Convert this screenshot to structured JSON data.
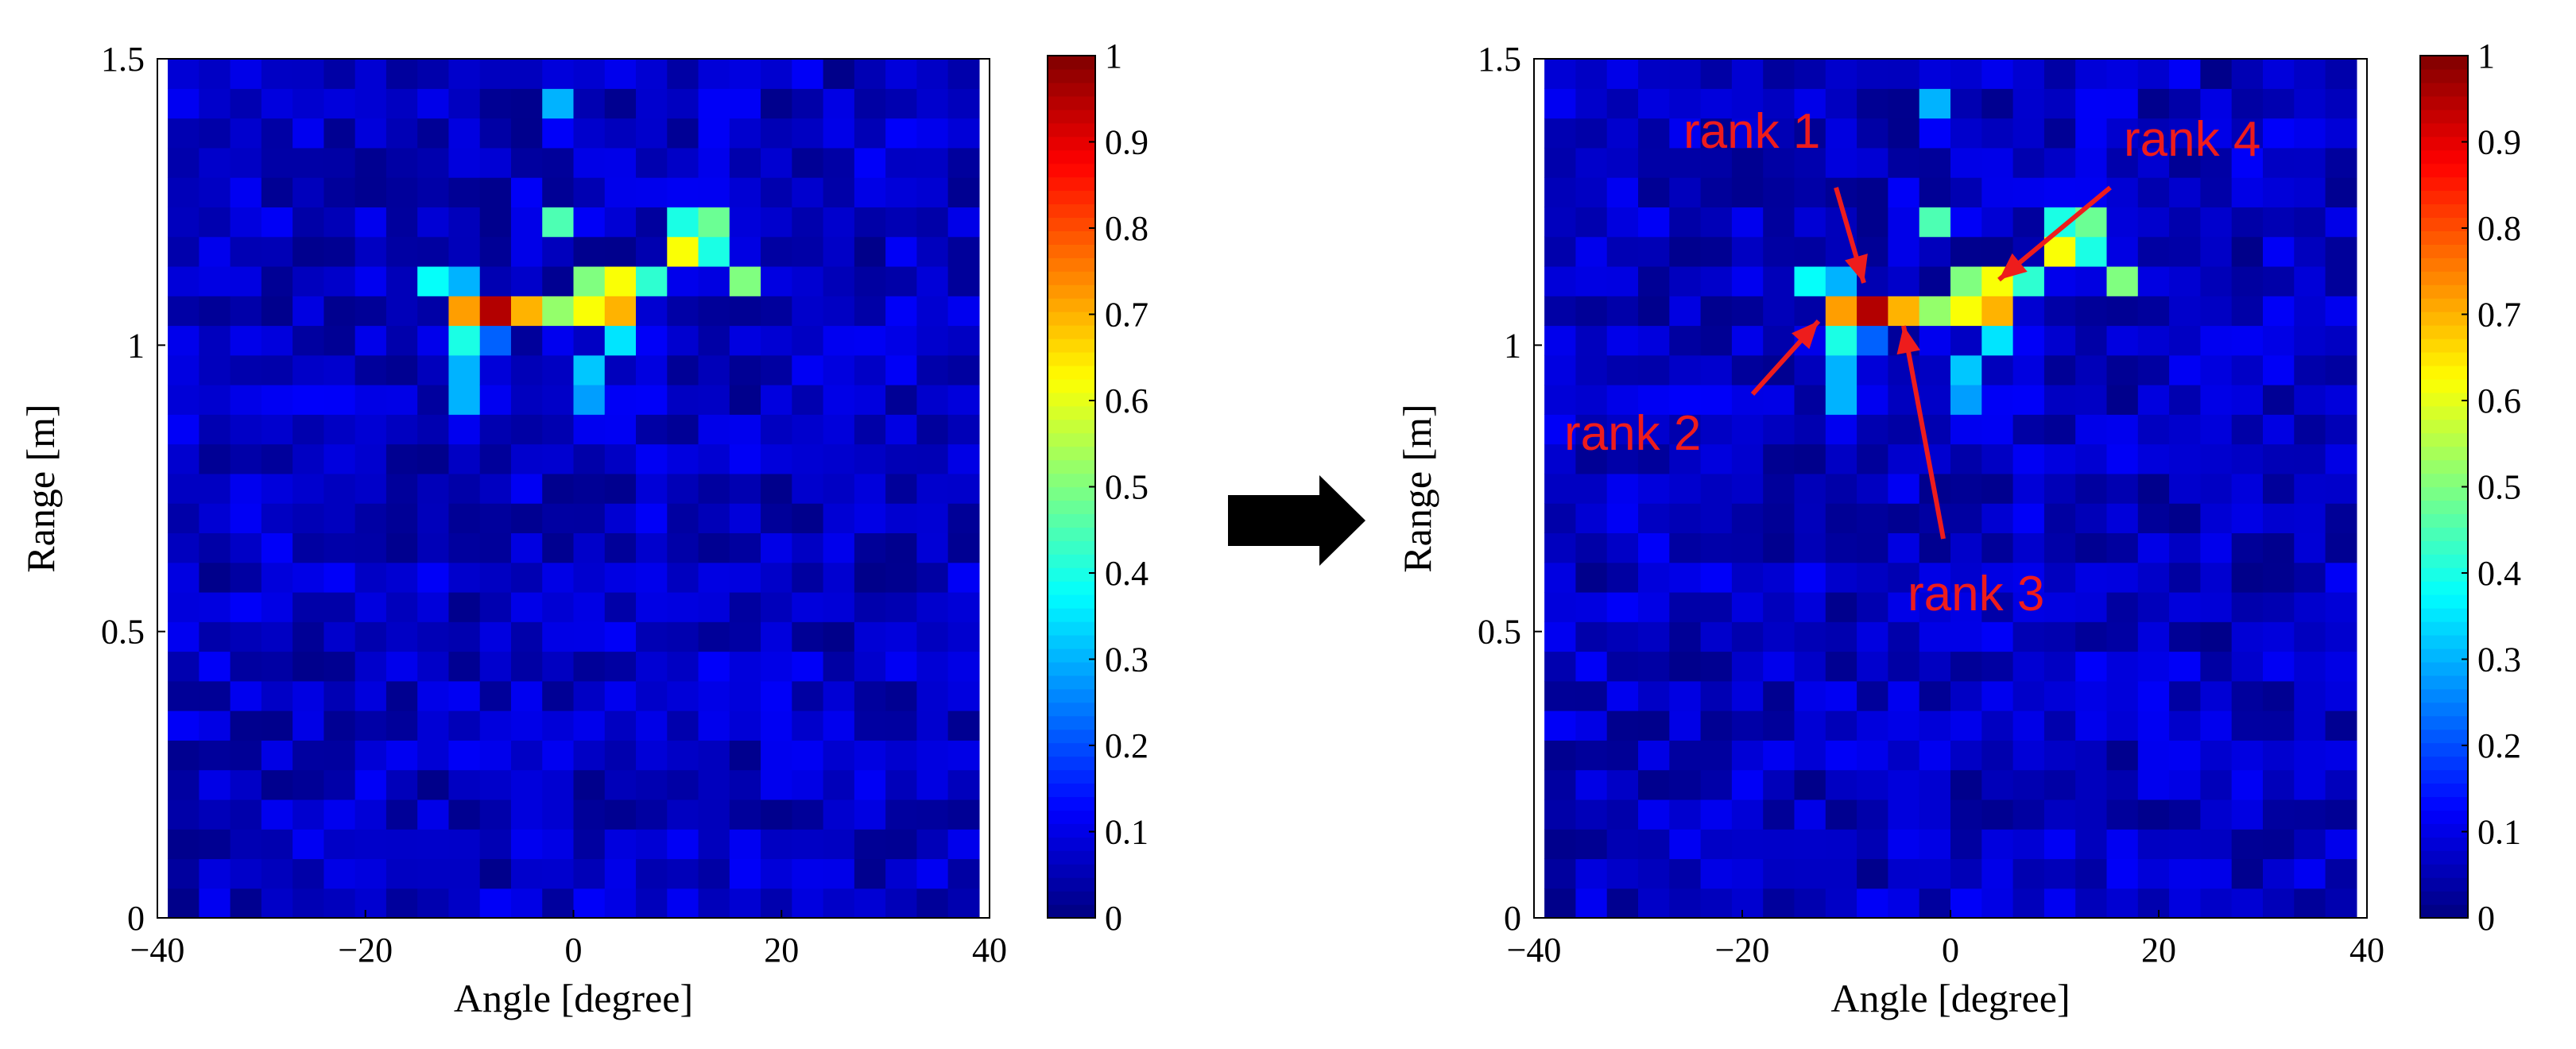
{
  "colors": {
    "annotation": "#ee1c1c",
    "arrow": "#000000",
    "axis": "#000000"
  },
  "chart_data": [
    {
      "type": "heatmap",
      "title": "",
      "xlabel": "Angle [degree]",
      "ylabel": "Range [m]",
      "xlim": [
        -40,
        40
      ],
      "ylim": [
        0,
        1.5
      ],
      "xticks": [
        -40,
        -20,
        0,
        20,
        40
      ],
      "xtick_labels": [
        "−40",
        "−20",
        "0",
        "20",
        "40"
      ],
      "yticks": [
        0,
        0.5,
        1,
        1.5
      ],
      "ytick_labels": [
        "0",
        "0.5",
        "1",
        "1.5"
      ],
      "colormap": "jet",
      "clim": [
        0,
        1
      ],
      "colorbar_ticks": [
        0,
        0.1,
        0.2,
        0.3,
        0.4,
        0.5,
        0.6,
        0.7,
        0.8,
        0.9,
        1
      ],
      "colorbar_tick_labels": [
        "0",
        "0.1",
        "0.2",
        "0.3",
        "0.4",
        "0.5",
        "0.6",
        "0.7",
        "0.8",
        "0.9",
        "1"
      ],
      "grid": {
        "angle_bins": 26,
        "angle_min": -39,
        "angle_max": 39,
        "range_bins": 29,
        "range_min": 0,
        "range_max": 1.5
      },
      "cells": [
        {
          "angle": -12,
          "range": 1.08,
          "value": 0.72
        },
        {
          "angle": -9,
          "range": 1.08,
          "value": 0.95
        },
        {
          "angle": -6,
          "range": 1.08,
          "value": 0.7
        },
        {
          "angle": -3,
          "range": 1.08,
          "value": 0.52
        },
        {
          "angle": 0,
          "range": 1.08,
          "value": 0.62
        },
        {
          "angle": 3,
          "range": 1.08,
          "value": 0.7
        },
        {
          "angle": -15,
          "range": 1.13,
          "value": 0.38
        },
        {
          "angle": -12,
          "range": 1.13,
          "value": 0.3
        },
        {
          "angle": 0,
          "range": 1.13,
          "value": 0.5
        },
        {
          "angle": 3,
          "range": 1.13,
          "value": 0.62
        },
        {
          "angle": 6,
          "range": 1.13,
          "value": 0.42
        },
        {
          "angle": 9,
          "range": 1.18,
          "value": 0.62
        },
        {
          "angle": 12,
          "range": 1.18,
          "value": 0.4
        },
        {
          "angle": 12,
          "range": 1.24,
          "value": 0.48
        },
        {
          "angle": 9,
          "range": 1.24,
          "value": 0.4
        },
        {
          "angle": 15,
          "range": 1.13,
          "value": 0.5
        },
        {
          "angle": -3,
          "range": 1.24,
          "value": 0.45
        },
        {
          "angle": -3,
          "range": 1.42,
          "value": 0.3
        },
        {
          "angle": -12,
          "range": 1.03,
          "value": 0.4
        },
        {
          "angle": -12,
          "range": 0.98,
          "value": 0.3
        },
        {
          "angle": -12,
          "range": 0.93,
          "value": 0.36
        },
        {
          "angle": -12,
          "range": 0.88,
          "value": 0.3
        },
        {
          "angle": -9,
          "range": 1.03,
          "value": 0.22
        },
        {
          "angle": 3,
          "range": 1.03,
          "value": 0.35
        },
        {
          "angle": 0,
          "range": 0.98,
          "value": 0.32
        },
        {
          "angle": 0,
          "range": 0.93,
          "value": 0.28
        }
      ],
      "annotations": []
    },
    {
      "type": "heatmap",
      "title": "",
      "xlabel": "Angle [degree]",
      "ylabel": "Range [m]",
      "xlim": [
        -40,
        40
      ],
      "ylim": [
        0,
        1.5
      ],
      "xticks": [
        -40,
        -20,
        0,
        20,
        40
      ],
      "xtick_labels": [
        "−40",
        "−20",
        "0",
        "20",
        "40"
      ],
      "yticks": [
        0,
        0.5,
        1,
        1.5
      ],
      "ytick_labels": [
        "0",
        "0.5",
        "1",
        "1.5"
      ],
      "colormap": "jet",
      "clim": [
        0,
        1
      ],
      "colorbar_ticks": [
        0,
        0.1,
        0.2,
        0.3,
        0.4,
        0.5,
        0.6,
        0.7,
        0.8,
        0.9,
        1
      ],
      "colorbar_tick_labels": [
        "0",
        "0.1",
        "0.2",
        "0.3",
        "0.4",
        "0.5",
        "0.6",
        "0.7",
        "0.8",
        "0.9",
        "1"
      ],
      "grid": {
        "angle_bins": 26,
        "angle_min": -39,
        "angle_max": 39,
        "range_bins": 29,
        "range_min": 0,
        "range_max": 1.5
      },
      "cells": [
        {
          "angle": -12,
          "range": 1.08,
          "value": 0.72
        },
        {
          "angle": -9,
          "range": 1.08,
          "value": 0.95
        },
        {
          "angle": -6,
          "range": 1.08,
          "value": 0.7
        },
        {
          "angle": -3,
          "range": 1.08,
          "value": 0.52
        },
        {
          "angle": 0,
          "range": 1.08,
          "value": 0.62
        },
        {
          "angle": 3,
          "range": 1.08,
          "value": 0.7
        },
        {
          "angle": -15,
          "range": 1.13,
          "value": 0.38
        },
        {
          "angle": -12,
          "range": 1.13,
          "value": 0.3
        },
        {
          "angle": 0,
          "range": 1.13,
          "value": 0.5
        },
        {
          "angle": 3,
          "range": 1.13,
          "value": 0.62
        },
        {
          "angle": 6,
          "range": 1.13,
          "value": 0.42
        },
        {
          "angle": 9,
          "range": 1.18,
          "value": 0.62
        },
        {
          "angle": 12,
          "range": 1.18,
          "value": 0.4
        },
        {
          "angle": 12,
          "range": 1.24,
          "value": 0.48
        },
        {
          "angle": 9,
          "range": 1.24,
          "value": 0.4
        },
        {
          "angle": 15,
          "range": 1.13,
          "value": 0.5
        },
        {
          "angle": -3,
          "range": 1.24,
          "value": 0.45
        },
        {
          "angle": -3,
          "range": 1.42,
          "value": 0.3
        },
        {
          "angle": -12,
          "range": 1.03,
          "value": 0.4
        },
        {
          "angle": -12,
          "range": 0.98,
          "value": 0.3
        },
        {
          "angle": -12,
          "range": 0.93,
          "value": 0.36
        },
        {
          "angle": -12,
          "range": 0.88,
          "value": 0.3
        },
        {
          "angle": -9,
          "range": 1.03,
          "value": 0.22
        },
        {
          "angle": 3,
          "range": 1.03,
          "value": 0.35
        },
        {
          "angle": 0,
          "range": 0.98,
          "value": 0.32
        },
        {
          "angle": 0,
          "range": 0.93,
          "value": 0.28
        }
      ],
      "annotations": [
        {
          "text": "rank 1",
          "angle": -9,
          "range": 1.08
        },
        {
          "text": "rank 2",
          "angle": -12,
          "range": 1.08
        },
        {
          "text": "rank 3",
          "angle": -6,
          "range": 1.08
        },
        {
          "text": "rank 4",
          "angle": 3,
          "range": 1.08
        }
      ]
    }
  ]
}
